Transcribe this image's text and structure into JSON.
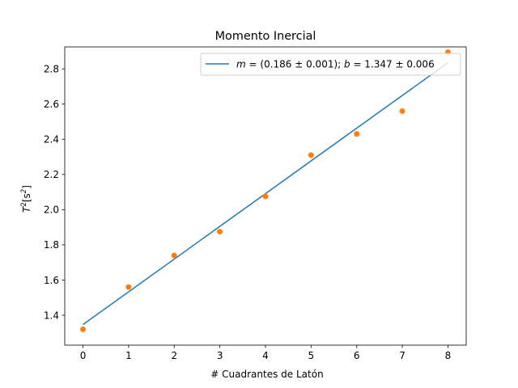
{
  "chart_data": {
    "type": "scatter",
    "title": "Momento Inercial",
    "xlabel": "# Cuadrantes de Latón",
    "ylabel_base": "T",
    "ylabel_sup": "2",
    "ylabel_unit_open": "[s",
    "ylabel_unit_sup": "2",
    "ylabel_unit_close": "]",
    "xlim": [
      -0.4,
      8.4
    ],
    "ylim": [
      1.23,
      2.925
    ],
    "xticks": [
      0,
      1,
      2,
      3,
      4,
      5,
      6,
      7,
      8
    ],
    "yticks": [
      1.4,
      1.6,
      1.8,
      2.0,
      2.2,
      2.4,
      2.6,
      2.8
    ],
    "ytick_labels": [
      "1.4",
      "1.6",
      "1.8",
      "2.0",
      "2.2",
      "2.4",
      "2.6",
      "2.8"
    ],
    "grid": false,
    "legend_position": "top-right",
    "series": [
      {
        "kind": "fit-line",
        "name": "m = (0.186 ± 0.001); b = 1.347 ± 0.006",
        "color": "#1f77b4",
        "slope": 0.186,
        "intercept": 1.347,
        "x": [
          0,
          8
        ]
      },
      {
        "kind": "points",
        "color": "#ff7f0e",
        "x": [
          0,
          1,
          2,
          3,
          4,
          5,
          6,
          7,
          8
        ],
        "y": [
          1.32,
          1.56,
          1.74,
          1.875,
          2.075,
          2.31,
          2.43,
          2.56,
          2.895
        ]
      }
    ],
    "legend": {
      "m_symbol": "m",
      "m_eq": " = (0.186 ± 0.001); ",
      "b_symbol": "b",
      "b_eq": " = 1.347 ± 0.006"
    }
  }
}
